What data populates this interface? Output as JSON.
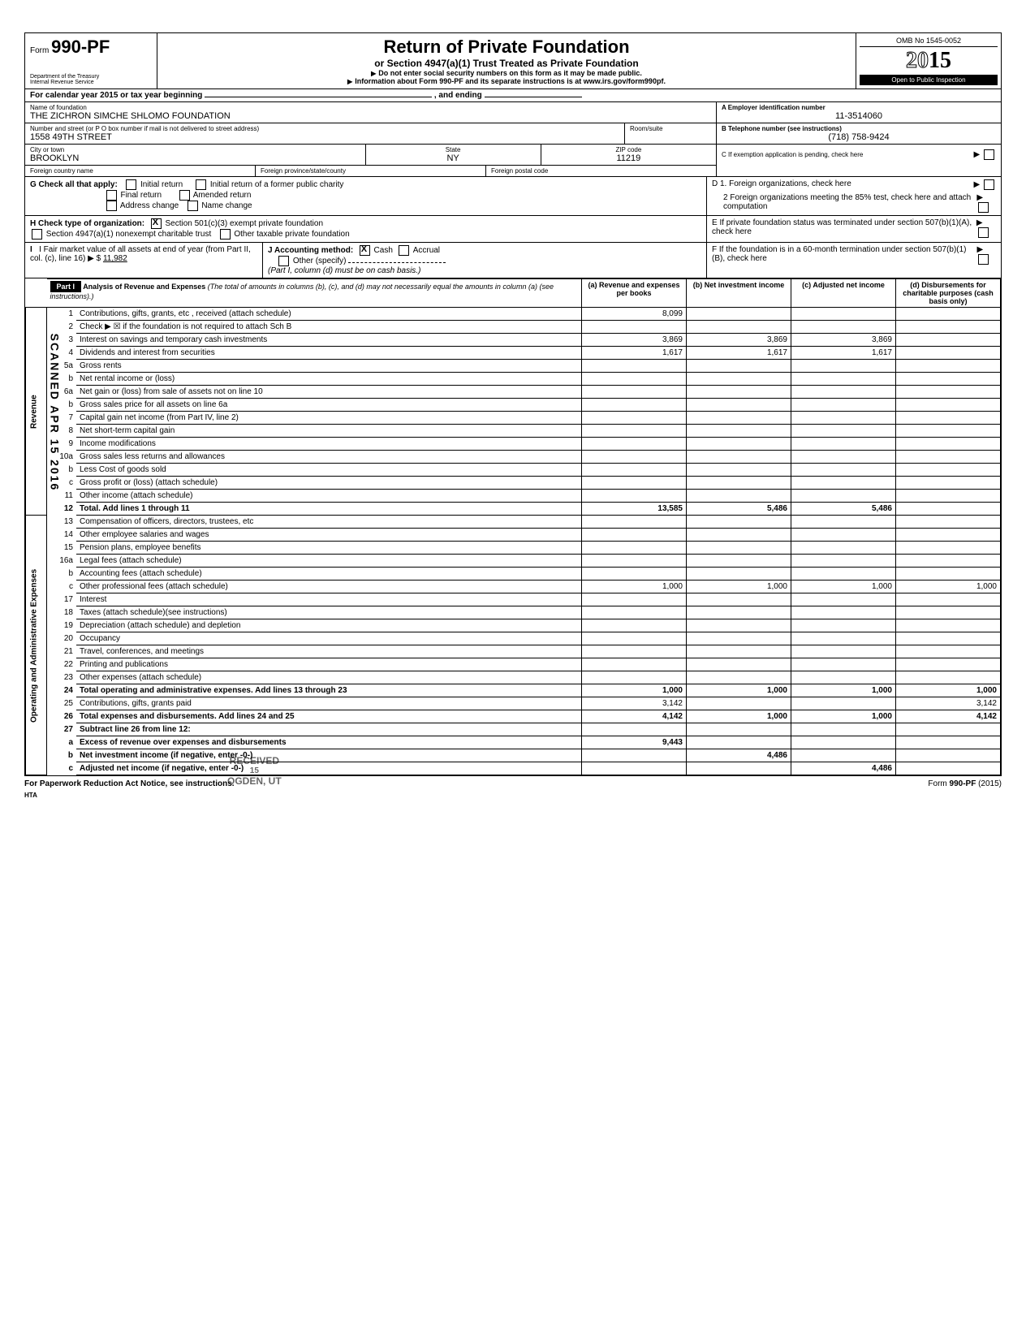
{
  "header": {
    "form_prefix": "Form",
    "form_number": "990-PF",
    "dept": "Department of the Treasury",
    "irs": "Internal Revenue Service",
    "title": "Return of Private Foundation",
    "subtitle": "or Section 4947(a)(1) Trust Treated as Private Foundation",
    "instr1": "Do not enter social security numbers on this form as it may be made public.",
    "instr2": "Information about Form 990-PF and its separate instructions is at www.irs.gov/form990pf.",
    "omb": "OMB No 1545-0052",
    "year_prefix": "20",
    "year_suffix": "15",
    "open_inspection": "Open to Public Inspection"
  },
  "calendar": {
    "text": "For calendar year 2015 or tax year beginning",
    "ending": ", and ending"
  },
  "foundation": {
    "name_label": "Name of foundation",
    "name": "THE ZICHRON SIMCHE SHLOMO FOUNDATION",
    "addr_label": "Number and street (or P O  box number if mail is not delivered to street address)",
    "addr": "1558 49TH STREET",
    "room_label": "Room/suite",
    "city_label": "City or town",
    "city": "BROOKLYN",
    "state_label": "State",
    "state": "NY",
    "zip_label": "ZIP code",
    "zip": "11219",
    "foreign_country_label": "Foreign country name",
    "foreign_province_label": "Foreign province/state/county",
    "foreign_postal_label": "Foreign postal code"
  },
  "right_info": {
    "a_label": "A  Employer identification number",
    "ein": "11-3514060",
    "b_label": "B  Telephone number (see instructions)",
    "phone": "(718) 758-9424",
    "c_label": "C  If exemption application is pending, check here",
    "d1_label": "D  1. Foreign organizations, check here",
    "d2_label": "2  Foreign organizations meeting the 85% test, check here and attach computation",
    "e_label": "E  If private foundation status was terminated under section 507(b)(1)(A), check here",
    "f_label": "F  If the foundation is in a 60-month termination under section 507(b)(1)(B), check here"
  },
  "checks": {
    "g_label": "G   Check all that apply:",
    "initial": "Initial return",
    "initial_former": "Initial return of a former public charity",
    "final": "Final return",
    "amended": "Amended return",
    "address_change": "Address change",
    "name_change": "Name change",
    "h_label": "H   Check type of organization:",
    "h_501c3": "Section 501(c)(3) exempt private foundation",
    "h_4947": "Section 4947(a)(1) nonexempt charitable trust",
    "h_other": "Other taxable private foundation",
    "i_label": "I    Fair market value of all assets at end of year (from Part II, col. (c), line 16)",
    "i_value": "11,982",
    "j_label": "J   Accounting method:",
    "j_cash": "Cash",
    "j_accrual": "Accrual",
    "j_other": "Other (specify)",
    "j_note": "(Part I, column (d) must be on cash basis.)"
  },
  "part1": {
    "label": "Part I",
    "title": "Analysis of Revenue and Expenses",
    "title_note": "(The total of amounts in columns (b), (c), and (d) may not necessarily equal the amounts in column (a) (see instructions).)",
    "col_a": "(a) Revenue and expenses per books",
    "col_b": "(b) Net investment income",
    "col_c": "(c) Adjusted net income",
    "col_d": "(d) Disbursements for charitable purposes (cash basis only)"
  },
  "vert_labels": {
    "revenue": "Revenue",
    "expenses": "Operating and Administrative Expenses"
  },
  "rows": [
    {
      "n": "1",
      "desc": "Contributions, gifts, grants, etc , received (attach schedule)",
      "a": "8,099",
      "b": "",
      "c": "",
      "d": "",
      "d_shaded": true
    },
    {
      "n": "2",
      "desc": "Check ▶ ☒ if the foundation is not required to attach Sch  B",
      "a": "",
      "b": "",
      "c": "",
      "d": ""
    },
    {
      "n": "3",
      "desc": "Interest on savings and temporary cash investments",
      "a": "3,869",
      "b": "3,869",
      "c": "3,869",
      "d": ""
    },
    {
      "n": "4",
      "desc": "Dividends and interest from securities",
      "a": "1,617",
      "b": "1,617",
      "c": "1,617",
      "d": ""
    },
    {
      "n": "5a",
      "desc": "Gross rents",
      "a": "",
      "b": "",
      "c": "",
      "d": ""
    },
    {
      "n": "b",
      "desc": "Net rental income or (loss)",
      "a": "",
      "b": "",
      "c": "",
      "d": "",
      "indent": true
    },
    {
      "n": "6a",
      "desc": "Net gain or (loss) from sale of assets not on line 10",
      "a": "",
      "b": "",
      "c": "",
      "d": ""
    },
    {
      "n": "b",
      "desc": "Gross sales price for all assets on line 6a",
      "a": "",
      "b": "",
      "c": "",
      "d": "",
      "indent": true
    },
    {
      "n": "7",
      "desc": "Capital gain net income (from Part IV, line 2)",
      "a": "",
      "b": "",
      "c": "",
      "d": ""
    },
    {
      "n": "8",
      "desc": "Net short-term capital gain",
      "a": "",
      "b": "",
      "c": "",
      "d": ""
    },
    {
      "n": "9",
      "desc": "Income modifications",
      "a": "",
      "b": "",
      "c": "",
      "d": ""
    },
    {
      "n": "10a",
      "desc": "Gross sales less returns and allowances",
      "a": "",
      "b": "",
      "c": "",
      "d": ""
    },
    {
      "n": "b",
      "desc": "Less  Cost of goods sold",
      "a": "",
      "b": "",
      "c": "",
      "d": "",
      "indent": true
    },
    {
      "n": "c",
      "desc": "Gross profit or (loss) (attach schedule)",
      "a": "",
      "b": "",
      "c": "",
      "d": "",
      "indent": true
    },
    {
      "n": "11",
      "desc": "Other income (attach schedule)",
      "a": "",
      "b": "",
      "c": "",
      "d": ""
    },
    {
      "n": "12",
      "desc": "Total.  Add lines 1 through 11",
      "a": "13,585",
      "b": "5,486",
      "c": "5,486",
      "d": "",
      "bold": true
    },
    {
      "n": "13",
      "desc": "Compensation of officers, directors, trustees, etc",
      "a": "",
      "b": "",
      "c": "",
      "d": ""
    },
    {
      "n": "14",
      "desc": "Other employee salaries and wages",
      "a": "",
      "b": "",
      "c": "",
      "d": ""
    },
    {
      "n": "15",
      "desc": "Pension plans, employee benefits",
      "a": "",
      "b": "",
      "c": "",
      "d": ""
    },
    {
      "n": "16a",
      "desc": "Legal fees (attach schedule)",
      "a": "",
      "b": "",
      "c": "",
      "d": ""
    },
    {
      "n": "b",
      "desc": "Accounting fees (attach schedule)",
      "a": "",
      "b": "",
      "c": "",
      "d": "",
      "indent": true
    },
    {
      "n": "c",
      "desc": "Other professional fees (attach schedule)",
      "a": "1,000",
      "b": "1,000",
      "c": "1,000",
      "d": "1,000",
      "indent": true
    },
    {
      "n": "17",
      "desc": "Interest",
      "a": "",
      "b": "",
      "c": "",
      "d": ""
    },
    {
      "n": "18",
      "desc": "Taxes (attach schedule)(see instructions)",
      "a": "",
      "b": "",
      "c": "",
      "d": ""
    },
    {
      "n": "19",
      "desc": "Depreciation (attach schedule) and depletion",
      "a": "",
      "b": "",
      "c": "",
      "d": ""
    },
    {
      "n": "20",
      "desc": "Occupancy",
      "a": "",
      "b": "",
      "c": "",
      "d": ""
    },
    {
      "n": "21",
      "desc": "Travel, conferences, and meetings",
      "a": "",
      "b": "",
      "c": "",
      "d": ""
    },
    {
      "n": "22",
      "desc": "Printing and publications",
      "a": "",
      "b": "",
      "c": "",
      "d": ""
    },
    {
      "n": "23",
      "desc": "Other expenses (attach schedule)",
      "a": "",
      "b": "",
      "c": "",
      "d": ""
    },
    {
      "n": "24",
      "desc": "Total operating and administrative expenses. Add lines 13 through 23",
      "a": "1,000",
      "b": "1,000",
      "c": "1,000",
      "d": "1,000",
      "bold": true
    },
    {
      "n": "25",
      "desc": "Contributions, gifts, grants paid",
      "a": "3,142",
      "b": "",
      "c": "",
      "d": "3,142"
    },
    {
      "n": "26",
      "desc": "Total expenses and disbursements. Add lines 24 and 25",
      "a": "4,142",
      "b": "1,000",
      "c": "1,000",
      "d": "4,142",
      "bold": true
    },
    {
      "n": "27",
      "desc": "Subtract line 26 from line 12:",
      "a": "",
      "b": "",
      "c": "",
      "d": "",
      "bold": true
    },
    {
      "n": "a",
      "desc": "Excess of revenue over expenses and disbursements",
      "a": "9,443",
      "b": "",
      "c": "",
      "d": "",
      "indent": true,
      "bold": true
    },
    {
      "n": "b",
      "desc": "Net investment income (if negative, enter -0-)",
      "a": "",
      "b": "4,486",
      "c": "",
      "d": "",
      "indent": true,
      "bold": true
    },
    {
      "n": "c",
      "desc": "Adjusted net income (if negative, enter -0-)",
      "a": "",
      "b": "",
      "c": "4,486",
      "d": "",
      "indent": true,
      "bold": true
    }
  ],
  "footer": {
    "left": "For Paperwork Reduction Act Notice, see instructions.",
    "hta": "HTA",
    "right": "Form 990-PF (2015)"
  },
  "stamps": {
    "scan": "SCANNED  APR 15 2016",
    "received": "RECEIVED",
    "ogden": "OGDEN, UT"
  },
  "colors": {
    "border": "#000000",
    "bg": "#ffffff",
    "shaded": "#d0d0d0",
    "black": "#000000"
  }
}
